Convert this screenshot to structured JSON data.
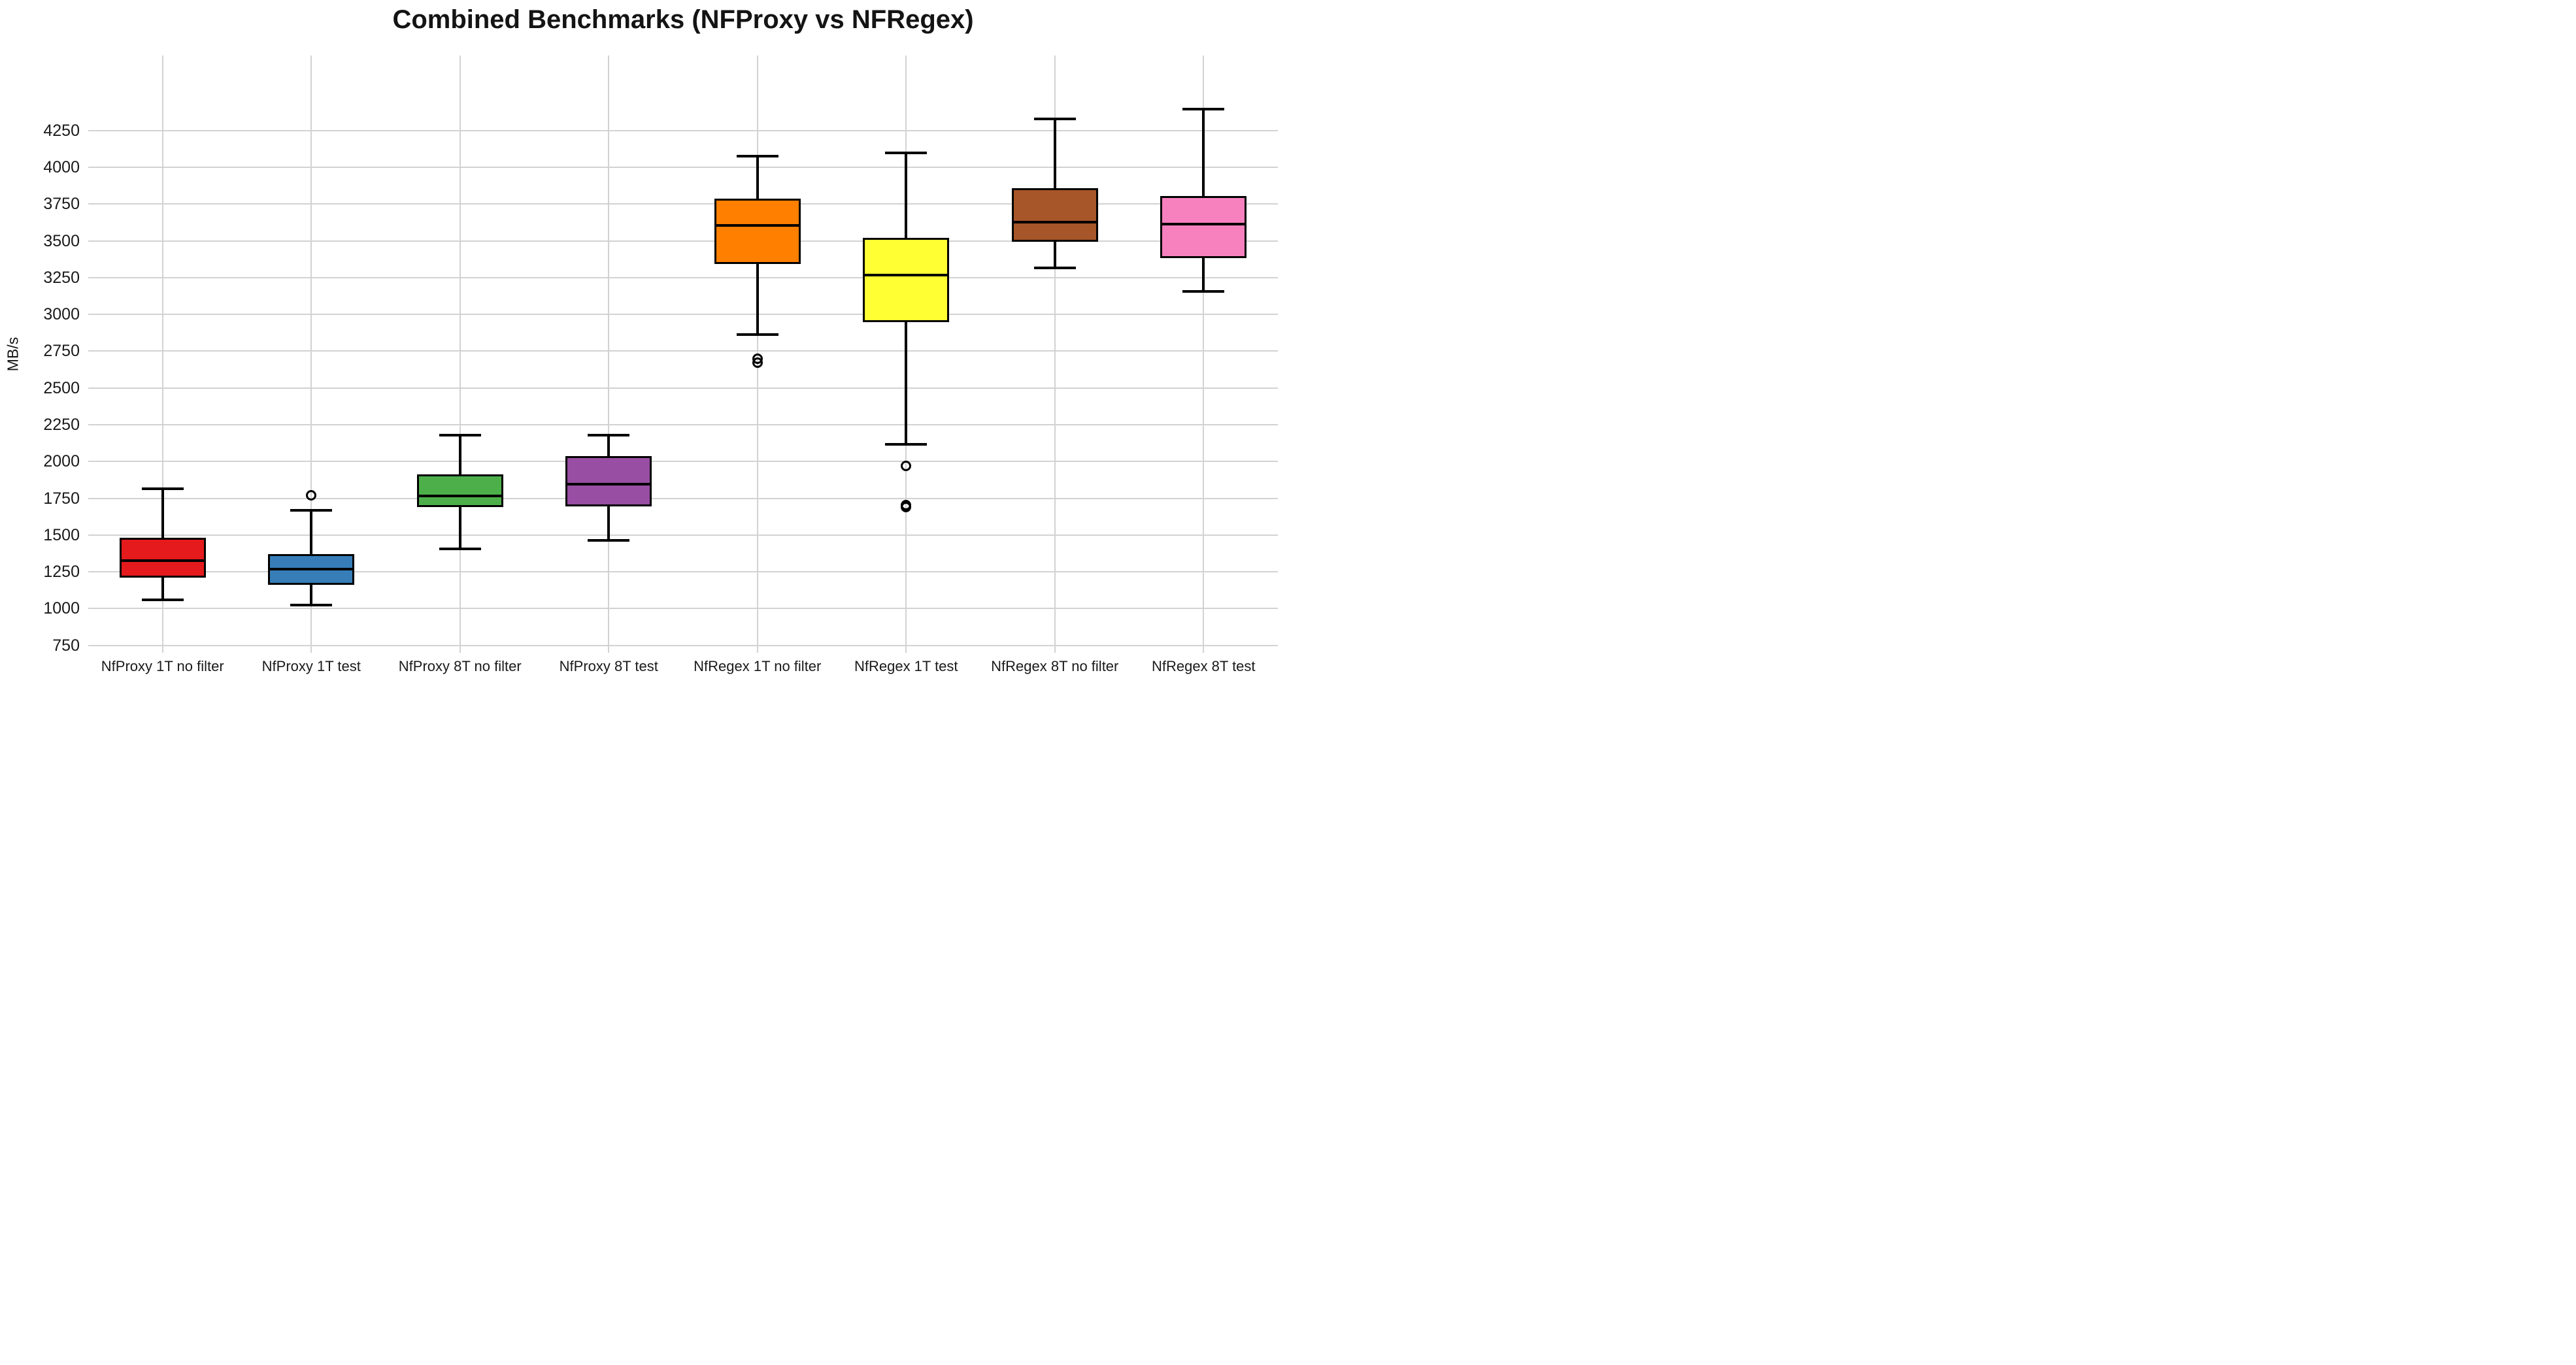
{
  "title": "Combined Benchmarks (NFProxy vs NFRegex)",
  "colors": {
    "background": "#ffffff",
    "grid": "#d2d2d2",
    "text": "#1a1a1a",
    "box_edge": "#000000"
  },
  "chart_data": {
    "type": "boxplot",
    "title": "Combined Benchmarks (NFProxy vs NFRegex)",
    "xlabel": "",
    "ylabel": "MB/s",
    "ylim": [
      700,
      4760
    ],
    "yticks": [
      750,
      1000,
      1250,
      1500,
      1750,
      2000,
      2250,
      2500,
      2750,
      3000,
      3250,
      3500,
      3750,
      4000,
      4250
    ],
    "grid": true,
    "legend": "none",
    "categories": [
      "NfProxy 1T no filter",
      "NfProxy 1T test",
      "NfProxy 8T no filter",
      "NfProxy 8T test",
      "NfRegex 1T no filter",
      "NfRegex 1T test",
      "NfRegex 8T no filter",
      "NfRegex 8T test"
    ],
    "series": [
      {
        "label": "NfProxy 1T no filter",
        "color": "#e41a1c",
        "whisker_low": 1060,
        "q1": 1220,
        "median": 1325,
        "q3": 1475,
        "whisker_high": 1815,
        "outliers": []
      },
      {
        "label": "NfProxy 1T test",
        "color": "#377eb8",
        "whisker_low": 1025,
        "q1": 1170,
        "median": 1268,
        "q3": 1360,
        "whisker_high": 1670,
        "outliers": [
          1770
        ]
      },
      {
        "label": "NfProxy 8T no filter",
        "color": "#4daf4a",
        "whisker_low": 1405,
        "q1": 1700,
        "median": 1768,
        "q3": 1905,
        "whisker_high": 2180,
        "outliers": []
      },
      {
        "label": "NfProxy 8T test",
        "color": "#984ea3",
        "whisker_low": 1465,
        "q1": 1705,
        "median": 1848,
        "q3": 2030,
        "whisker_high": 2180,
        "outliers": []
      },
      {
        "label": "NfRegex 1T no filter",
        "color": "#ff7f00",
        "whisker_low": 2865,
        "q1": 3350,
        "median": 3605,
        "q3": 3780,
        "whisker_high": 4075,
        "outliers": [
          2700,
          2672
        ]
      },
      {
        "label": "NfRegex 1T test",
        "color": "#ffff33",
        "whisker_low": 2115,
        "q1": 2955,
        "median": 3268,
        "q3": 3510,
        "whisker_high": 4100,
        "outliers": [
          1970,
          1706,
          1690
        ]
      },
      {
        "label": "NfRegex 8T no filter",
        "color": "#a65628",
        "whisker_low": 3315,
        "q1": 3502,
        "median": 3628,
        "q3": 3848,
        "whisker_high": 4330,
        "outliers": []
      },
      {
        "label": "NfRegex 8T test",
        "color": "#f781bf",
        "whisker_low": 3158,
        "q1": 3392,
        "median": 3612,
        "q3": 3795,
        "whisker_high": 4395,
        "outliers": []
      }
    ]
  }
}
